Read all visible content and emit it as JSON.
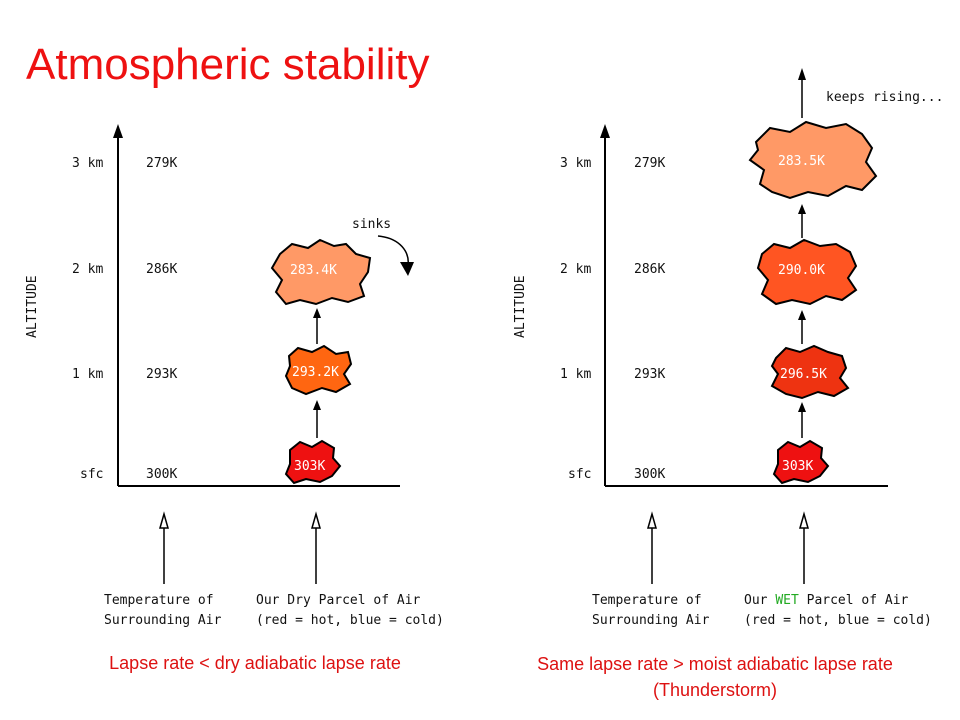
{
  "title": "Atmospheric stability",
  "left": {
    "axis_label": "ALTITUDE",
    "levels": [
      {
        "alt": "3 km",
        "temp": "279K"
      },
      {
        "alt": "2 km",
        "temp": "286K"
      },
      {
        "alt": "1 km",
        "temp": "293K"
      },
      {
        "alt": "sfc",
        "temp": "300K"
      }
    ],
    "parcels": [
      "303K",
      "293.2K",
      "283.4K"
    ],
    "annotation": "sinks",
    "surround_label": [
      "Temperature of",
      "Surrounding Air"
    ],
    "parcel_label_1": "Our Dry Parcel of Air",
    "parcel_label_2": "(red = hot, blue = cold)",
    "caption": "Lapse rate < dry adiabatic lapse rate"
  },
  "right": {
    "axis_label": "ALTITUDE",
    "levels": [
      {
        "alt": "3 km",
        "temp": "279K"
      },
      {
        "alt": "2 km",
        "temp": "286K"
      },
      {
        "alt": "1 km",
        "temp": "293K"
      },
      {
        "alt": "sfc",
        "temp": "300K"
      }
    ],
    "parcels": [
      "303K",
      "296.5K",
      "290.0K",
      "283.5K"
    ],
    "annotation": "keeps rising...",
    "surround_label": [
      "Temperature of",
      "Surrounding Air"
    ],
    "parcel_label_pre": "Our ",
    "parcel_label_wet": "WET",
    "parcel_label_post": " Parcel of Air",
    "parcel_label_2": "(red = hot, blue = cold)",
    "caption_line1": "Same lapse rate > moist adiabatic lapse rate",
    "caption_line2": "(Thunderstorm)"
  },
  "colors": {
    "title": "#ee1111",
    "caption": "#dd1111",
    "parcel_303": "#ee1111",
    "parcel_296": "#ee3311",
    "parcel_293": "#ff6611",
    "parcel_290": "#ff5522",
    "parcel_283": "#ff9966",
    "wet_text": "#22aa22"
  }
}
